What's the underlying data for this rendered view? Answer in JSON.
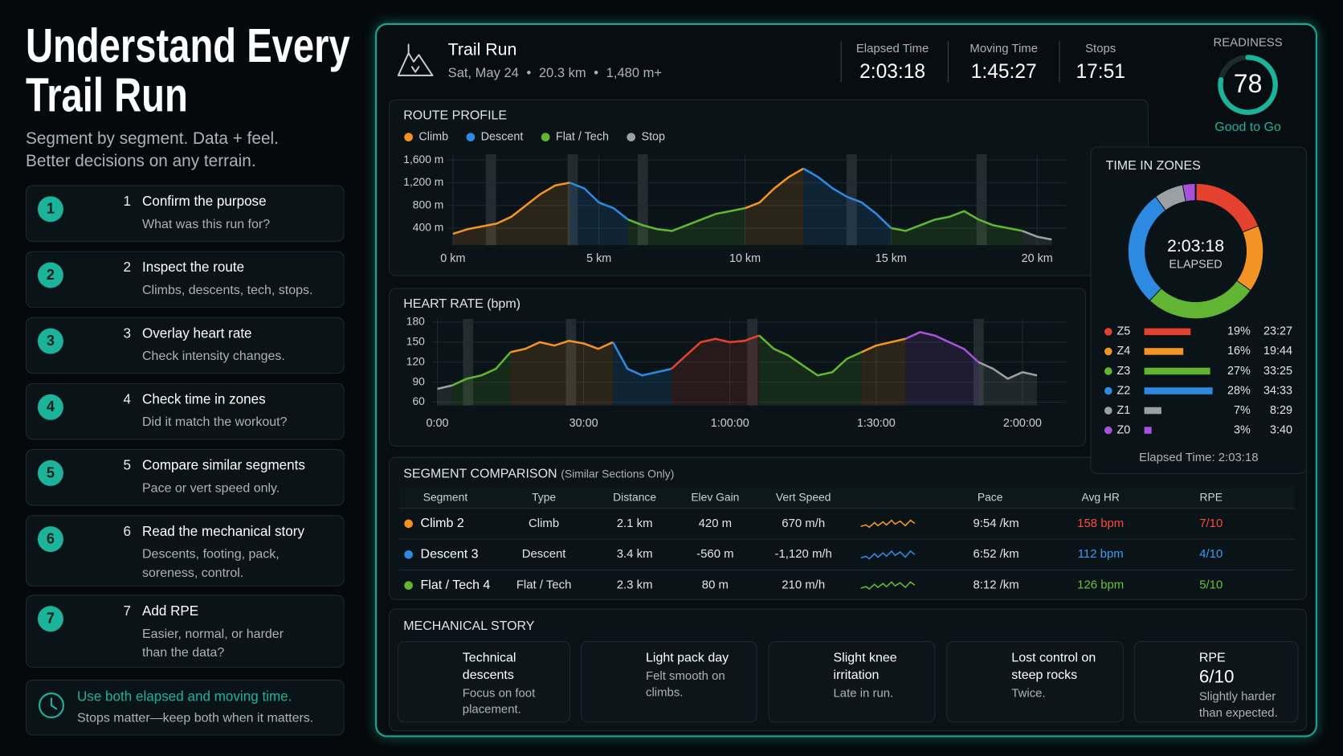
{
  "title_lines": [
    "Understand Every",
    "Trail Run"
  ],
  "subtitle_lines": [
    "Segment by segment. Data + feel.",
    "Better decisions on any terrain."
  ],
  "steps": [
    {
      "number": 1,
      "title": "Confirm the purpose",
      "text": "What was this run for?"
    },
    {
      "number": 2,
      "title": "Inspect the route",
      "text": "Climbs, descents, tech, stops."
    },
    {
      "number": 3,
      "title": "Overlay heart rate",
      "text": "Check intensity changes."
    },
    {
      "number": 4,
      "title": "Check time in zones",
      "text": "Did it match the workout?"
    },
    {
      "number": 5,
      "title": "Compare similar segments",
      "text": "Pace or vert speed only."
    },
    {
      "number": 6,
      "title": "Read the mechanical story",
      "text": "Descents, footing, pack, soreness, control."
    },
    {
      "number": 7,
      "title": "Add RPE",
      "text": "Easier, normal, or harder than the data?"
    }
  ],
  "tip": {
    "title": "Use both elapsed and moving time.",
    "text": "Stops matter—keep both when it matters."
  },
  "run": {
    "title": "Trail Run",
    "date": "Sat, May 24",
    "distance": "20.3 km",
    "gain": "1,480 m+"
  },
  "stats": [
    {
      "label": "Elapsed Time",
      "value": "2:03:18"
    },
    {
      "label": "Moving Time",
      "value": "1:45:27"
    },
    {
      "label": "Stops",
      "value": "17:51"
    }
  ],
  "readiness": {
    "label": "READINESS",
    "value": 78,
    "lim": [
      0,
      100
    ],
    "status": "Good to Go",
    "color": "#1bb39a"
  },
  "route_profile": {
    "type": "line",
    "title": "ROUTE PROFILE",
    "legend": [
      {
        "name": "Climb",
        "color": "#f39325"
      },
      {
        "name": "Descent",
        "color": "#2d8ae0"
      },
      {
        "name": "Flat / Tech",
        "color": "#62b532"
      },
      {
        "name": "Stop",
        "color": "#9aa0a4"
      }
    ],
    "xlim": [
      -0.2,
      21
    ],
    "xticks": [
      {
        "value": 0,
        "label": "0 km"
      },
      {
        "value": 5,
        "label": "5 km"
      },
      {
        "value": 10,
        "label": "10 km"
      },
      {
        "value": 15,
        "label": "15 km"
      },
      {
        "value": 20,
        "label": "20 km"
      }
    ],
    "ylim": [
      100,
      1700
    ],
    "yticks": [
      {
        "value": 400,
        "label": "400 m"
      },
      {
        "value": 800,
        "label": "800 m"
      },
      {
        "value": 1200,
        "label": "1,200 m"
      },
      {
        "value": 1600,
        "label": "1,600 m"
      }
    ],
    "grid": true,
    "stops": [
      1.3,
      4.1,
      6.5,
      13.65,
      18.1
    ],
    "series": [
      {
        "color": "#f39325",
        "x": [
          0,
          0.5,
          1,
          1.5,
          2,
          2.5,
          3,
          3.5,
          4
        ],
        "values": [
          300,
          380,
          430,
          480,
          600,
          800,
          1000,
          1150,
          1200
        ]
      },
      {
        "color": "#2d8ae0",
        "x": [
          4,
          4.5,
          5,
          5.5,
          6
        ],
        "values": [
          1200,
          1100,
          850,
          750,
          550
        ]
      },
      {
        "color": "#62b532",
        "x": [
          6,
          6.5,
          7,
          7.5,
          8,
          8.5,
          9,
          9.5,
          10
        ],
        "values": [
          550,
          450,
          380,
          350,
          450,
          550,
          650,
          700,
          750
        ]
      },
      {
        "color": "#f39325",
        "x": [
          10,
          10.5,
          11,
          11.5,
          12
        ],
        "values": [
          750,
          850,
          1100,
          1300,
          1450
        ]
      },
      {
        "color": "#2d8ae0",
        "x": [
          12,
          12.5,
          13,
          13.5,
          14,
          14.5,
          15
        ],
        "values": [
          1450,
          1300,
          1100,
          950,
          850,
          650,
          400
        ]
      },
      {
        "color": "#62b532",
        "x": [
          15,
          15.5,
          16,
          16.5,
          17,
          17.5,
          18,
          18.5,
          19,
          19.5
        ],
        "values": [
          400,
          350,
          450,
          550,
          600,
          700,
          550,
          450,
          400,
          350
        ]
      },
      {
        "color": "#9aa0a4",
        "x": [
          19.5,
          20,
          20.5
        ],
        "values": [
          350,
          250,
          200
        ]
      }
    ]
  },
  "heart_rate": {
    "type": "line",
    "title": "HEART RATE (bpm)",
    "xlim": [
      -1,
      129
    ],
    "xticks": [
      {
        "value": 0,
        "label": "0:00"
      },
      {
        "value": 30,
        "label": "30:00"
      },
      {
        "value": 60,
        "label": "1:00:00"
      },
      {
        "value": 90,
        "label": "1:30:00"
      },
      {
        "value": 120,
        "label": "2:00:00"
      }
    ],
    "ylim": [
      55,
      185
    ],
    "yticks": [
      60,
      90,
      120,
      150,
      180
    ],
    "grid": true,
    "stops": [
      6.3,
      27.4,
      64.6,
      111
    ],
    "series": [
      {
        "color": "#9aa0a4",
        "x": [
          0,
          3
        ],
        "values": [
          80,
          85
        ]
      },
      {
        "color": "#62b532",
        "x": [
          3,
          6,
          9,
          12,
          15
        ],
        "values": [
          85,
          95,
          100,
          110,
          135
        ]
      },
      {
        "color": "#f39325",
        "x": [
          15,
          18,
          21,
          24,
          27,
          30,
          33,
          36
        ],
        "values": [
          135,
          140,
          150,
          145,
          152,
          148,
          140,
          150
        ]
      },
      {
        "color": "#2d8ae0",
        "x": [
          36,
          39,
          42,
          45,
          48
        ],
        "values": [
          150,
          110,
          100,
          105,
          110
        ]
      },
      {
        "color": "#e5412f",
        "x": [
          48,
          51,
          54,
          57,
          60,
          63,
          66
        ],
        "values": [
          110,
          130,
          150,
          155,
          150,
          152,
          160
        ]
      },
      {
        "color": "#62b532",
        "x": [
          66,
          69,
          72,
          75,
          78,
          81,
          84,
          87
        ],
        "values": [
          160,
          140,
          130,
          115,
          100,
          105,
          125,
          135
        ]
      },
      {
        "color": "#f39325",
        "x": [
          87,
          90,
          93,
          96
        ],
        "values": [
          135,
          145,
          150,
          155
        ]
      },
      {
        "color": "#a653d9",
        "x": [
          96,
          99,
          102,
          105,
          108,
          111
        ],
        "values": [
          155,
          165,
          160,
          150,
          140,
          120
        ]
      },
      {
        "color": "#9aa0a4",
        "x": [
          111,
          114,
          117,
          120,
          123
        ],
        "values": [
          120,
          110,
          95,
          105,
          100
        ]
      }
    ]
  },
  "time_in_zones": {
    "type": "donut",
    "title": "TIME IN ZONES",
    "center_value": "2:03:18",
    "center_label": "ELAPSED",
    "categories": [
      "Z5",
      "Z4",
      "Z3",
      "Z2",
      "Z1",
      "Z0"
    ],
    "colors": [
      "#e5412f",
      "#f39325",
      "#62b532",
      "#2d8ae0",
      "#9aa0a4",
      "#a653d9"
    ],
    "values": [
      19,
      16,
      27,
      28,
      7,
      3
    ],
    "value_labels": [
      "19%",
      "16%",
      "27%",
      "28%",
      "7%",
      "3%"
    ],
    "times": [
      "23:27",
      "19:44",
      "33:25",
      "34:33",
      "8:29",
      "3:40"
    ],
    "footer": "Elapsed Time: 2:03:18"
  },
  "segment_comparison": {
    "title": "SEGMENT COMPARISON",
    "note": "(Similar Sections Only)",
    "columns": [
      "Segment",
      "Type",
      "Distance",
      "Elev Gain",
      "Vert Speed",
      "Pace",
      "Avg HR",
      "RPE"
    ],
    "rows": [
      {
        "color": "#f39325",
        "hr_color": "#ff4a3a",
        "cells": [
          "Climb 2",
          "Climb",
          "2.1 km",
          "420 m",
          "670 m/h",
          "9:54 /km",
          "158 bpm",
          "7/10"
        ]
      },
      {
        "color": "#2d8ae0",
        "hr_color": "#3d9bf0",
        "cells": [
          "Descent 3",
          "Descent",
          "3.4 km",
          "-560 m",
          "-1,120 m/h",
          "6:52 /km",
          "112 bpm",
          "4/10"
        ]
      },
      {
        "color": "#62b532",
        "hr_color": "#6cc23a",
        "cells": [
          "Flat / Tech 4",
          "Flat / Tech",
          "2.3 km",
          "80 m",
          "210 m/h",
          "8:12 /km",
          "126 bpm",
          "5/10"
        ]
      }
    ]
  },
  "mechanical_story": {
    "title": "MECHANICAL STORY",
    "cards": [
      {
        "title": "Technical descents",
        "text": "Focus on foot placement."
      },
      {
        "title": "Light pack day",
        "text": "Felt smooth on climbs."
      },
      {
        "title": "Slight knee irritation",
        "text": "Late in run."
      },
      {
        "title": "Lost control on steep rocks",
        "text": "Twice."
      },
      {
        "title": "RPE",
        "value": "6/10",
        "text": "Slightly harder than expected."
      }
    ]
  }
}
